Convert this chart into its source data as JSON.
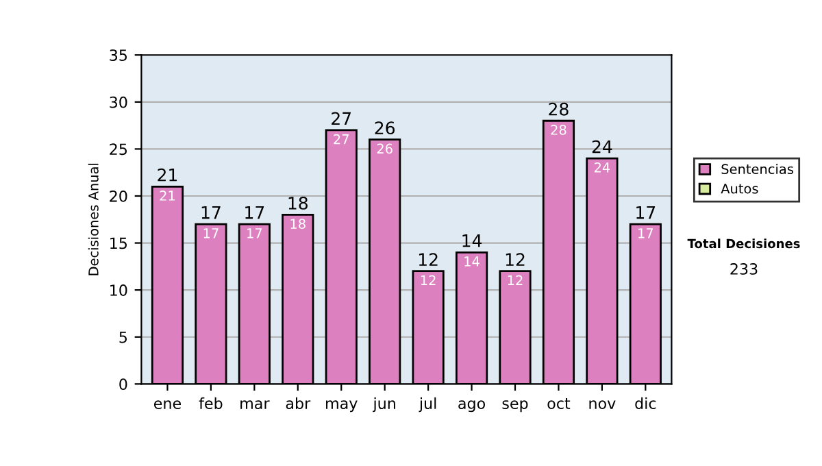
{
  "chart_data": {
    "type": "bar",
    "stacked": true,
    "ylabel": "Decisiones Anual",
    "categories": [
      "ene",
      "feb",
      "mar",
      "abr",
      "may",
      "jun",
      "jul",
      "ago",
      "sep",
      "oct",
      "nov",
      "dic"
    ],
    "series": [
      {
        "name": "Sentencias",
        "color": "#dd80c0",
        "values": [
          21,
          17,
          17,
          18,
          27,
          26,
          12,
          14,
          12,
          28,
          24,
          17
        ],
        "value_labels": [
          "21",
          "17",
          "17",
          "18",
          "27",
          "26",
          "12",
          "14",
          "12",
          "28",
          "24",
          "17"
        ]
      },
      {
        "name": "Autos",
        "color": "#d8eca0",
        "values": [
          null,
          null,
          null,
          null,
          null,
          null,
          null,
          null,
          null,
          null,
          null,
          null
        ]
      }
    ],
    "totals": [
      "21",
      "17",
      "17",
      "18",
      "27",
      "26",
      "12",
      "14",
      "12",
      "28",
      "24",
      "17"
    ],
    "ylim": [
      0,
      35
    ],
    "yticks": [
      0,
      5,
      10,
      15,
      20,
      25,
      30,
      35
    ],
    "grid": "y",
    "legend": "right",
    "annotations": [
      "Total Decisiones",
      "233"
    ]
  }
}
